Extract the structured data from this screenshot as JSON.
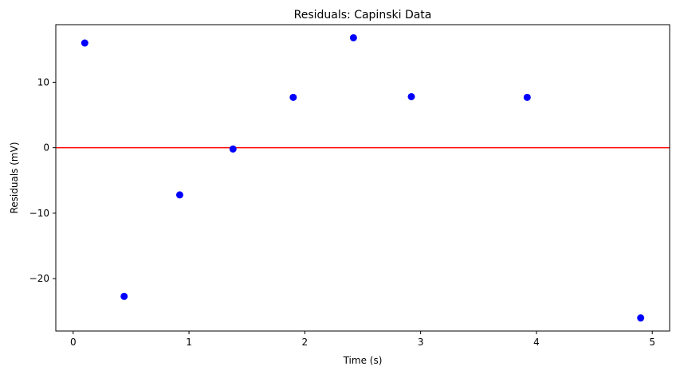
{
  "chart_data": {
    "type": "scatter",
    "title": "Residuals: Capinski Data",
    "xlabel": "Time (s)",
    "ylabel": "Residuals (mV)",
    "xlim": [
      -0.15,
      5.15
    ],
    "ylim": [
      -28.0,
      18.8
    ],
    "xticks": [
      0,
      1,
      2,
      3,
      4,
      5
    ],
    "yticks": [
      -20,
      -10,
      0,
      10
    ],
    "grid": false,
    "legend": "none",
    "reference_line": {
      "y": 0,
      "color": "#ff0000"
    },
    "series": [
      {
        "color": "#0000ff",
        "points": [
          {
            "x": 0.1,
            "y": 16.0
          },
          {
            "x": 0.44,
            "y": -22.7
          },
          {
            "x": 0.92,
            "y": -7.2
          },
          {
            "x": 1.38,
            "y": -0.2
          },
          {
            "x": 1.9,
            "y": 7.7
          },
          {
            "x": 2.42,
            "y": 16.8
          },
          {
            "x": 2.92,
            "y": 7.8
          },
          {
            "x": 3.92,
            "y": 7.7
          },
          {
            "x": 4.9,
            "y": -26.0
          }
        ]
      }
    ]
  }
}
